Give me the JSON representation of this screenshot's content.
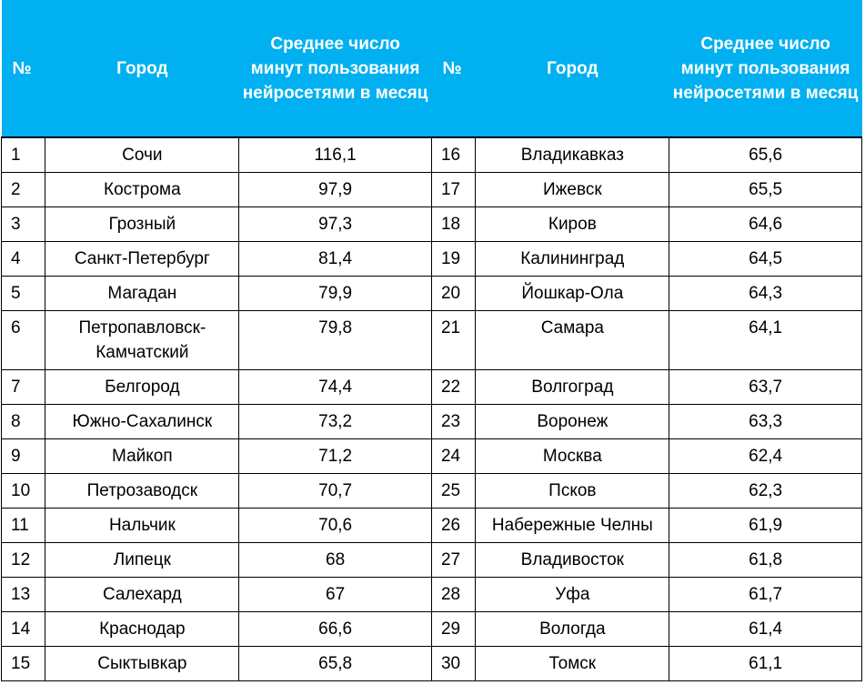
{
  "colors": {
    "header_bg": "#00b0f0",
    "header_text": "#ffffff"
  },
  "header": {
    "num": "№",
    "city": "Город",
    "value": "Среднее число минут пользования нейросетями в месяц"
  },
  "left": [
    {
      "num": "1",
      "city": "Сочи",
      "value": "116,1"
    },
    {
      "num": "2",
      "city": "Кострома",
      "value": "97,9"
    },
    {
      "num": "3",
      "city": "Грозный",
      "value": "97,3"
    },
    {
      "num": "4",
      "city": "Санкт-Петербург",
      "value": "81,4"
    },
    {
      "num": "5",
      "city": "Магадан",
      "value": "79,9"
    },
    {
      "num": "6",
      "city": "Петропавловск-Камчатский",
      "value": "79,8"
    },
    {
      "num": "7",
      "city": "Белгород",
      "value": "74,4"
    },
    {
      "num": "8",
      "city": "Южно-Сахалинск",
      "value": "73,2"
    },
    {
      "num": "9",
      "city": "Майкоп",
      "value": "71,2"
    },
    {
      "num": "10",
      "city": "Петрозаводск",
      "value": "70,7"
    },
    {
      "num": "11",
      "city": "Нальчик",
      "value": "70,6"
    },
    {
      "num": "12",
      "city": "Липецк",
      "value": "68"
    },
    {
      "num": "13",
      "city": "Салехард",
      "value": "67"
    },
    {
      "num": "14",
      "city": "Краснодар",
      "value": "66,6"
    },
    {
      "num": "15",
      "city": "Сыктывкар",
      "value": "65,8"
    }
  ],
  "right": [
    {
      "num": "16",
      "city": "Владикавказ",
      "value": "65,6"
    },
    {
      "num": "17",
      "city": "Ижевск",
      "value": "65,5"
    },
    {
      "num": "18",
      "city": "Киров",
      "value": "64,6"
    },
    {
      "num": "19",
      "city": "Калининград",
      "value": "64,5"
    },
    {
      "num": "20",
      "city": "Йошкар-Ола",
      "value": "64,3"
    },
    {
      "num": "21",
      "city": "Самара",
      "value": "64,1"
    },
    {
      "num": "22",
      "city": "Волгоград",
      "value": "63,7"
    },
    {
      "num": "23",
      "city": "Воронеж",
      "value": "63,3"
    },
    {
      "num": "24",
      "city": "Москва",
      "value": "62,4"
    },
    {
      "num": "25",
      "city": "Псков",
      "value": "62,3"
    },
    {
      "num": "26",
      "city": "Набережные Челны",
      "value": "61,9"
    },
    {
      "num": "27",
      "city": "Владивосток",
      "value": "61,8"
    },
    {
      "num": "28",
      "city": "Уфа",
      "value": "61,7"
    },
    {
      "num": "29",
      "city": "Вологда",
      "value": "61,4"
    },
    {
      "num": "30",
      "city": "Томск",
      "value": "61,1"
    }
  ]
}
